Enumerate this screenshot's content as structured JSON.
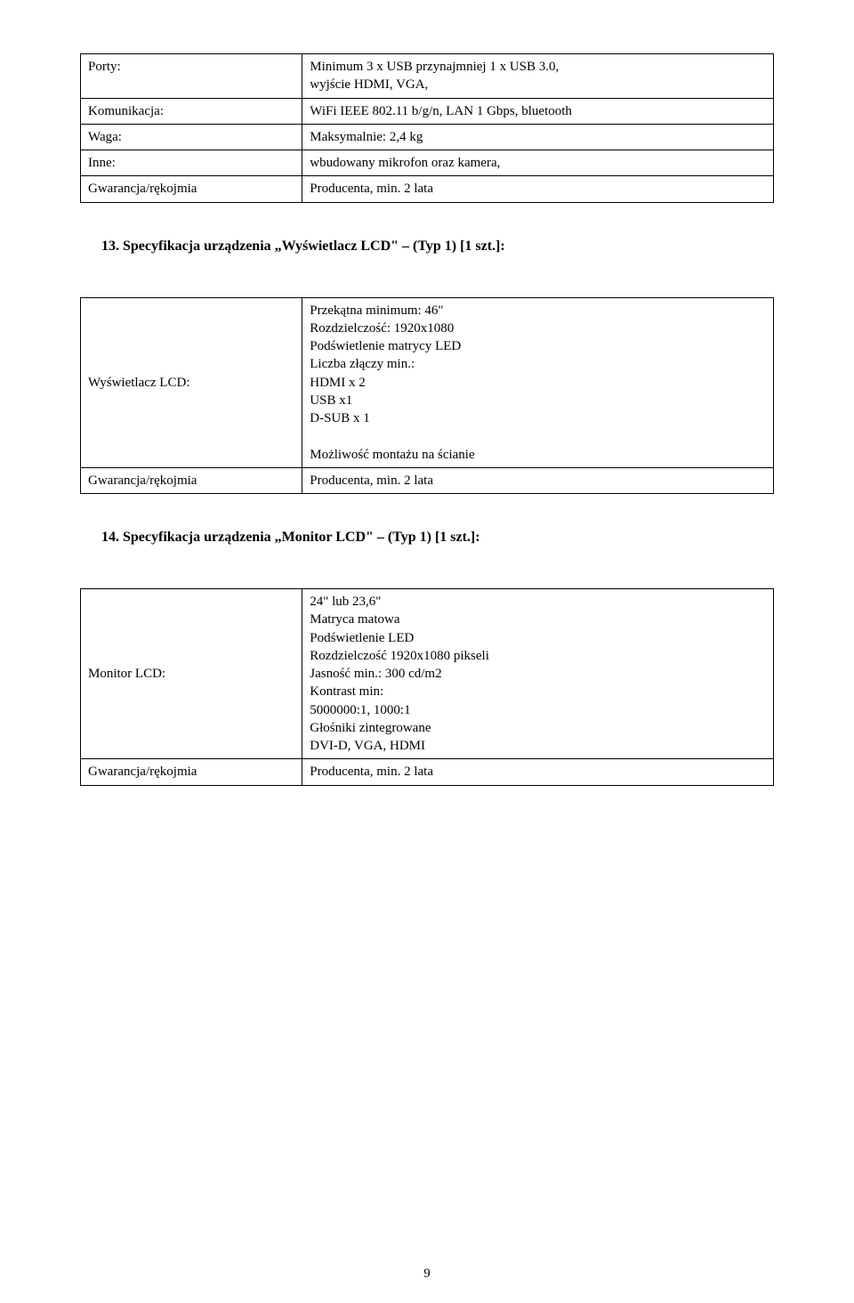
{
  "table1": {
    "rows": [
      {
        "label": "Porty:",
        "value": "Minimum 3 x USB przynajmniej 1 x USB 3.0,\nwyjście HDMI, VGA,"
      },
      {
        "label": "Komunikacja:",
        "value": "WiFi IEEE 802.11 b/g/n, LAN 1 Gbps, bluetooth"
      },
      {
        "label": "Waga:",
        "value": "Maksymalnie: 2,4 kg"
      },
      {
        "label": "Inne:",
        "value": "wbudowany mikrofon oraz kamera,"
      },
      {
        "label": "Gwarancja/rękojmia",
        "value": "Producenta, min. 2 lata"
      }
    ]
  },
  "heading13": "13. Specyfikacja urządzenia „Wyświetlacz LCD\" – (Typ 1) [1 szt.]:",
  "table2": {
    "row1": {
      "label": "Wyświetlacz LCD:",
      "lines": [
        "Przekątna minimum: 46\"",
        "Rozdzielczość: 1920x1080",
        "Podświetlenie matrycy LED",
        "Liczba złączy min.:",
        "HDMI x 2",
        "USB x1",
        "D-SUB x 1",
        "",
        "Możliwość montażu na ścianie"
      ]
    },
    "row2": {
      "label": "Gwarancja/rękojmia",
      "value": "Producenta, min. 2 lata"
    }
  },
  "heading14": "14. Specyfikacja urządzenia „Monitor LCD\" – (Typ 1) [1 szt.]:",
  "table3": {
    "row1": {
      "label": "Monitor LCD:",
      "lines": [
        "24\" lub 23,6\"",
        "Matryca matowa",
        "Podświetlenie LED",
        "Rozdzielczość 1920x1080 pikseli",
        "Jasność min.: 300 cd/m2",
        "Kontrast min:",
        "5000000:1, 1000:1",
        "Głośniki zintegrowane",
        "DVI-D, VGA, HDMI"
      ]
    },
    "row2": {
      "label": "Gwarancja/rękojmia",
      "value": "Producenta, min. 2 lata"
    }
  },
  "pageNumber": "9"
}
